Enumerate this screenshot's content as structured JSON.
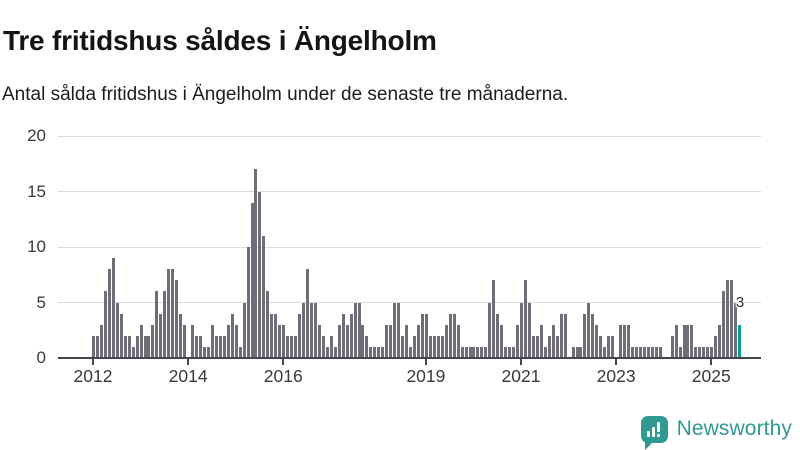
{
  "header": {
    "title": "Tre fritidshus såldes i Ängelholm",
    "subtitle": "Antal sålda fritidshus i Ängelholm under de senaste tre månaderna."
  },
  "chart_data": {
    "type": "bar",
    "title": "Tre fritidshus såldes i Ängelholm",
    "subtitle": "Antal sålda fritidshus i Ängelholm under de senaste tre månaderna.",
    "x_frequency": "monthly",
    "x_start": "2012-01",
    "x_end": "2025-08",
    "ylim": [
      0,
      20
    ],
    "ytick_labels": [
      "0",
      "5",
      "10",
      "15",
      "20"
    ],
    "xtick_labels": [
      "2012",
      "2014",
      "2016",
      "2019",
      "2021",
      "2023",
      "2025"
    ],
    "xtick_month_offsets": [
      0,
      24,
      48,
      84,
      108,
      132,
      156
    ],
    "grid": "horizontal",
    "legend": "none",
    "bar_color": "#6e6e78",
    "highlight_color": "#00a0a0",
    "highlight_index": 163,
    "highlight_label": "3",
    "values": [
      2,
      2,
      3,
      6,
      8,
      9,
      5,
      4,
      2,
      2,
      1,
      2,
      3,
      2,
      2,
      3,
      6,
      4,
      6,
      8,
      8,
      7,
      4,
      3,
      0,
      3,
      2,
      2,
      1,
      1,
      3,
      2,
      2,
      2,
      3,
      4,
      3,
      1,
      5,
      10,
      14,
      17,
      15,
      11,
      6,
      4,
      4,
      3,
      3,
      2,
      2,
      2,
      4,
      5,
      8,
      5,
      5,
      3,
      2,
      1,
      2,
      1,
      3,
      4,
      3,
      4,
      5,
      5,
      3,
      2,
      1,
      1,
      1,
      1,
      3,
      3,
      5,
      5,
      2,
      3,
      1,
      2,
      3,
      4,
      4,
      2,
      2,
      2,
      2,
      3,
      4,
      4,
      3,
      1,
      1,
      1,
      1,
      1,
      1,
      1,
      5,
      7,
      4,
      3,
      1,
      1,
      1,
      3,
      5,
      7,
      5,
      2,
      2,
      3,
      1,
      2,
      3,
      2,
      4,
      4,
      0,
      1,
      1,
      1,
      4,
      5,
      4,
      3,
      2,
      1,
      2,
      2,
      0,
      3,
      3,
      3,
      1,
      1,
      1,
      1,
      1,
      1,
      1,
      1,
      0,
      0,
      2,
      3,
      1,
      3,
      3,
      3,
      1,
      1,
      1,
      1,
      1,
      2,
      3,
      6,
      7,
      7,
      5,
      3
    ]
  },
  "footer": {
    "brand": "Newsworthy",
    "brand_icon": "newsworthy-speech-bubble-bar-chart-icon"
  }
}
